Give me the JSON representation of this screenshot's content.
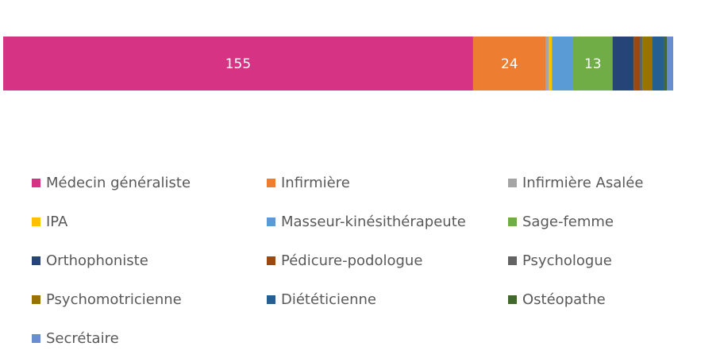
{
  "chart_data": {
    "type": "bar",
    "orientation": "horizontal-stacked-100",
    "categories": [
      ""
    ],
    "series": [
      {
        "name": "Médecin généraliste",
        "values": [
          155
        ],
        "color": "#D63384",
        "label": "155"
      },
      {
        "name": "Infirmière",
        "values": [
          24
        ],
        "color": "#ED7D31",
        "label": "24"
      },
      {
        "name": "Infirmière Asalée",
        "values": [
          1
        ],
        "color": "#A5A5A5",
        "label": ""
      },
      {
        "name": "IPA",
        "values": [
          1
        ],
        "color": "#FFC000",
        "label": ""
      },
      {
        "name": "Masseur-kinésithérapeute",
        "values": [
          7
        ],
        "color": "#5B9BD5",
        "label": ""
      },
      {
        "name": "Sage-femme",
        "values": [
          13
        ],
        "color": "#70AD47",
        "label": "13"
      },
      {
        "name": "Orthophoniste",
        "values": [
          7
        ],
        "color": "#264478",
        "label": ""
      },
      {
        "name": "Pédicure-podologue",
        "values": [
          2
        ],
        "color": "#9E480E",
        "label": ""
      },
      {
        "name": "Psychologue",
        "values": [
          1
        ],
        "color": "#636363",
        "label": ""
      },
      {
        "name": "Psychomotricienne",
        "values": [
          3
        ],
        "color": "#997300",
        "label": ""
      },
      {
        "name": "Diététicienne",
        "values": [
          4
        ],
        "color": "#255E91",
        "label": ""
      },
      {
        "name": "Ostéopathe",
        "values": [
          1
        ],
        "color": "#43682B",
        "label": ""
      },
      {
        "name": "Secrétaire",
        "values": [
          2
        ],
        "color": "#698ED0",
        "label": ""
      }
    ],
    "legend_position": "bottom",
    "grid": false,
    "axes_visible": false
  }
}
